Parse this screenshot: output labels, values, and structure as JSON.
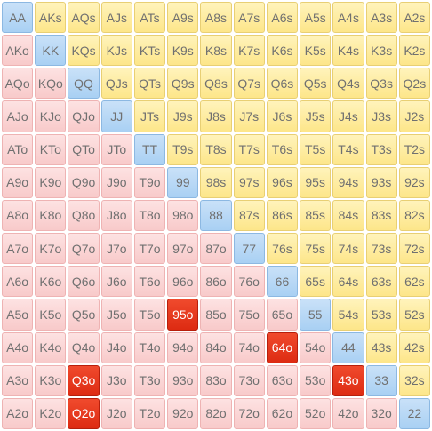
{
  "ranks": [
    "A",
    "K",
    "Q",
    "J",
    "T",
    "9",
    "8",
    "7",
    "6",
    "5",
    "4",
    "3",
    "2"
  ],
  "colors": {
    "pair": "#a9d0f3",
    "suited": "#fde68a",
    "offsuit": "#f8caca",
    "highlight": "#dd2b12"
  },
  "highlighted_hands": [
    "95o",
    "64o",
    "Q3o",
    "43o",
    "Q2o"
  ]
}
